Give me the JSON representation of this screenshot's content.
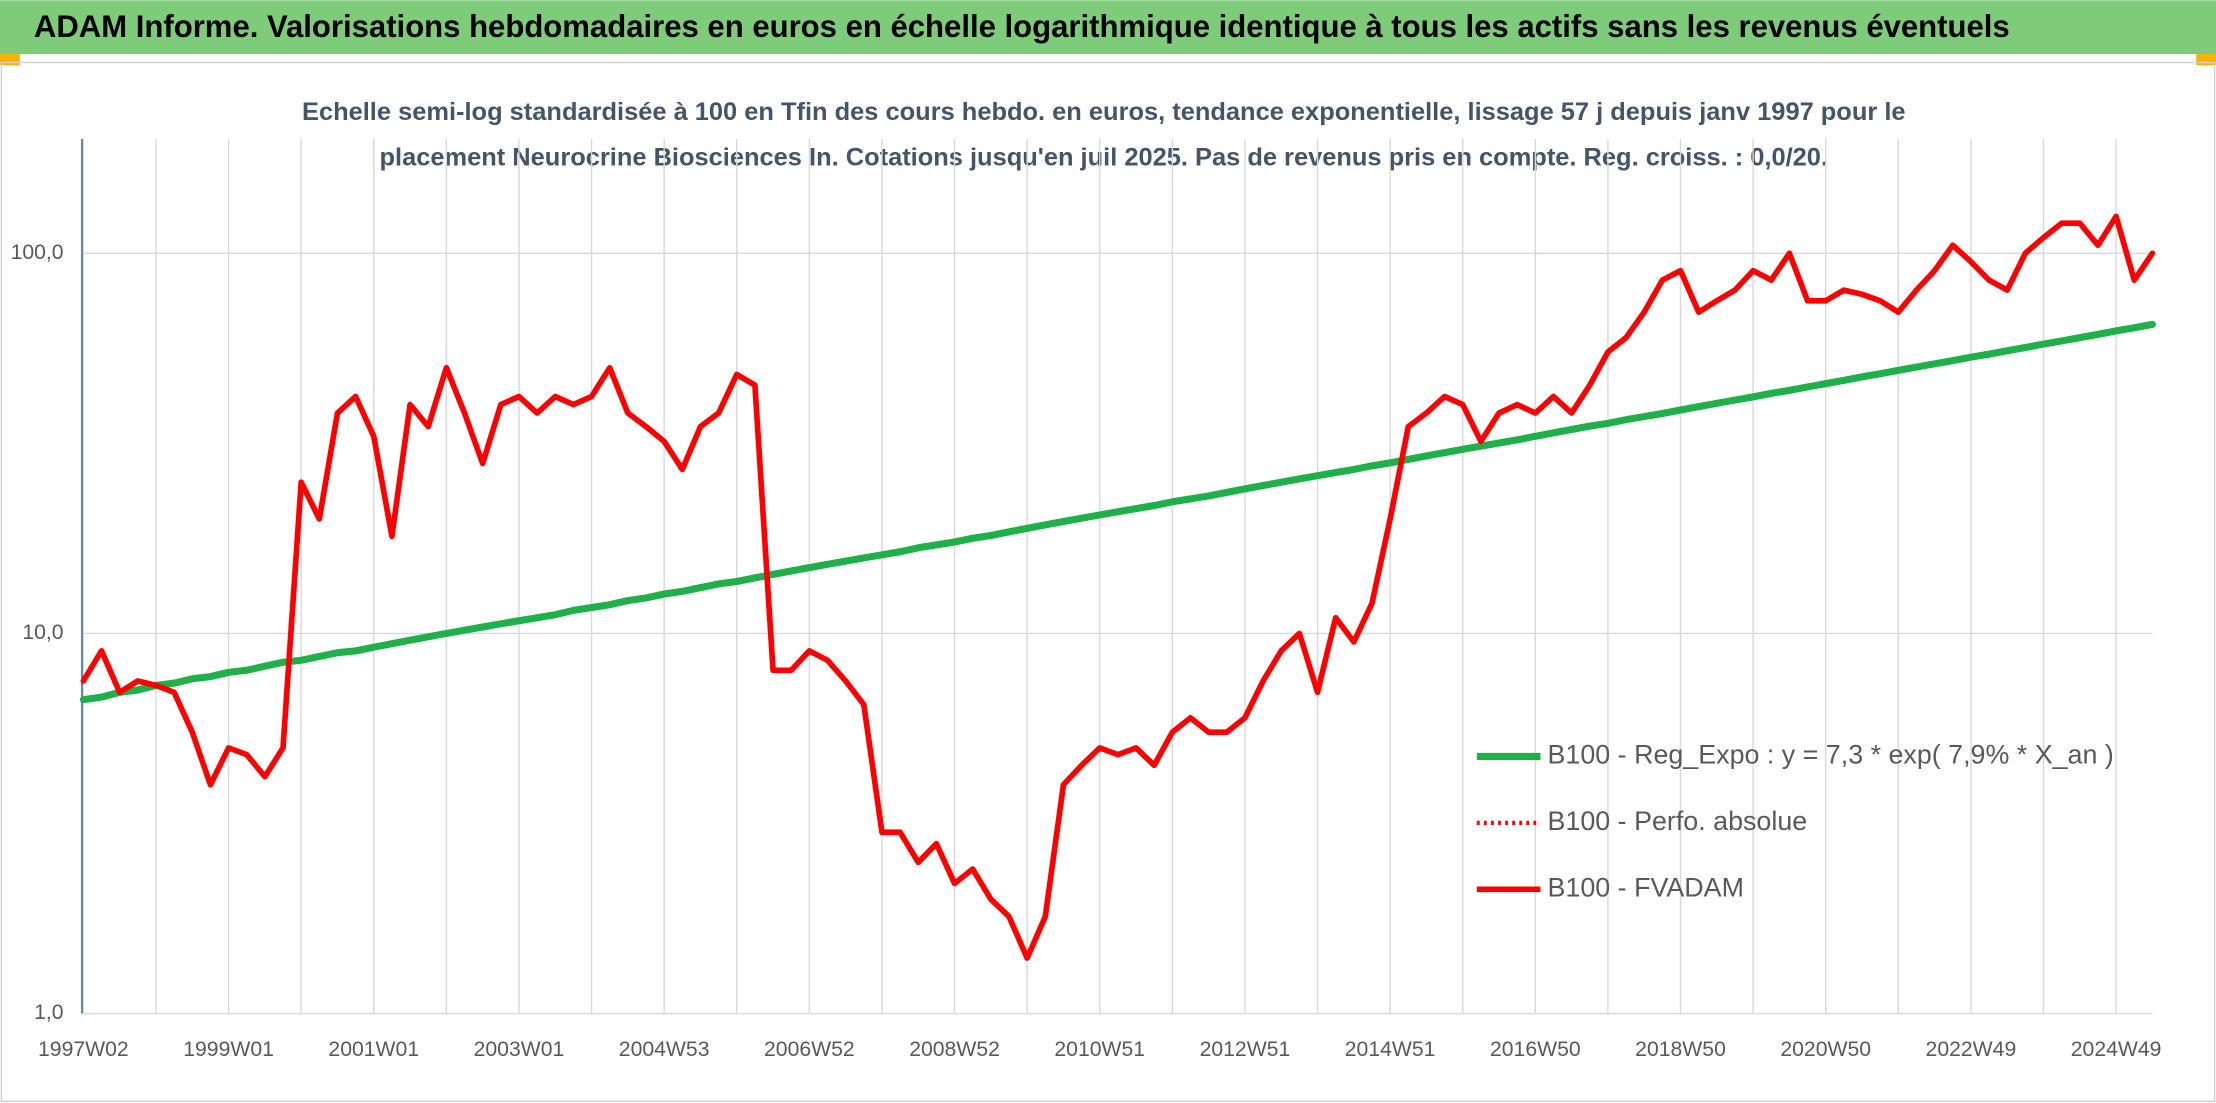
{
  "chart_data": {
    "type": "line",
    "title": "ADAM Informe. Valorisations hebdomadaires en euros en échelle logarithmique identique à tous les actifs sans les revenus éventuels",
    "subtitle": [
      "Echelle semi-log standardisée à 100 en Tfin des cours hebdo. en euros, tendance exponentielle, lissage 57 j depuis janv 1997 pour le",
      "placement Neurocrine Biosciences In. Cotations jusqu'en juil 2025. Pas de revenus pris en compte. Reg. croiss. : 0,0/20."
    ],
    "log_scale": true,
    "grid": true,
    "legend": "right",
    "ylim": [
      1,
      200
    ],
    "yticks": [
      {
        "value": 1,
        "label": "1,0"
      },
      {
        "value": 10,
        "label": "10,0"
      },
      {
        "value": 100,
        "label": "100,0"
      }
    ],
    "categories": [
      "1997W02",
      null,
      null,
      null,
      null,
      null,
      null,
      null,
      "1999W01",
      null,
      null,
      null,
      null,
      null,
      null,
      null,
      "2001W01",
      null,
      null,
      null,
      null,
      null,
      null,
      null,
      "2003W01",
      null,
      null,
      null,
      null,
      null,
      null,
      null,
      "2004W53",
      null,
      null,
      null,
      null,
      null,
      null,
      null,
      "2006W52",
      null,
      null,
      null,
      null,
      null,
      null,
      null,
      "2008W52",
      null,
      null,
      null,
      null,
      null,
      null,
      null,
      "2010W51",
      null,
      null,
      null,
      null,
      null,
      null,
      null,
      "2012W51",
      null,
      null,
      null,
      null,
      null,
      null,
      null,
      "2014W51",
      null,
      null,
      null,
      null,
      null,
      null,
      null,
      "2016W50",
      null,
      null,
      null,
      null,
      null,
      null,
      null,
      "2018W50",
      null,
      null,
      null,
      null,
      null,
      null,
      null,
      "2020W50",
      null,
      null,
      null,
      null,
      null,
      null,
      null,
      "2022W49",
      null,
      null,
      null,
      null,
      null,
      null,
      null,
      "2024W49",
      null,
      null
    ],
    "series": [
      {
        "name": "B100 - Reg_Expo : y = 7,3 * exp( 7,9% *  X_an )",
        "color": "#1fb04a",
        "width": 5,
        "dash": "solid",
        "values": [
          6.7,
          6.8,
          7.0,
          7.1,
          7.3,
          7.4,
          7.6,
          7.7,
          7.9,
          8.0,
          8.2,
          8.4,
          8.5,
          8.7,
          8.9,
          9.0,
          9.2,
          9.4,
          9.6,
          9.8,
          10.0,
          10.2,
          10.4,
          10.6,
          10.8,
          11.0,
          11.2,
          11.5,
          11.7,
          11.9,
          12.2,
          12.4,
          12.7,
          12.9,
          13.2,
          13.5,
          13.7,
          14.0,
          14.3,
          14.6,
          14.9,
          15.2,
          15.5,
          15.8,
          16.1,
          16.4,
          16.8,
          17.1,
          17.4,
          17.8,
          18.1,
          18.5,
          18.9,
          19.3,
          19.7,
          20.1,
          20.5,
          20.9,
          21.3,
          21.7,
          22.2,
          22.6,
          23.0,
          23.5,
          24.0,
          24.5,
          25.0,
          25.5,
          26.0,
          26.5,
          27.0,
          27.6,
          28.1,
          28.7,
          29.3,
          29.9,
          30.5,
          31.1,
          31.7,
          32.3,
          33.0,
          33.7,
          34.4,
          35.1,
          35.7,
          36.5,
          37.2,
          37.9,
          38.7,
          39.5,
          40.3,
          41.1,
          41.9,
          42.8,
          43.6,
          44.5,
          45.4,
          46.3,
          47.3,
          48.2,
          49.2,
          50.2,
          51.2,
          52.2,
          53.3,
          54.3,
          55.4,
          56.5,
          57.7,
          58.8,
          60.0,
          61.2,
          62.5,
          63.7,
          65.0
        ]
      },
      {
        "name": "B100 - Perfo. absolue",
        "color": "#ff0000",
        "width": 3,
        "dash": "dotted",
        "values": [
          7.5,
          9,
          7,
          7.5,
          7.3,
          7,
          5.5,
          4.0,
          5,
          4.8,
          4.2,
          5.0,
          25,
          20,
          38,
          42,
          33,
          18,
          40,
          35,
          50,
          38,
          28,
          40,
          42,
          38,
          42,
          40,
          42,
          50,
          38,
          35,
          32,
          27,
          35,
          38,
          48,
          45,
          8,
          8,
          9,
          8.5,
          7.5,
          6.5,
          3.0,
          3.0,
          2.5,
          2.8,
          2.2,
          2.4,
          2.0,
          1.8,
          1.4,
          1.8,
          4.0,
          4.5,
          5.0,
          4.8,
          5.0,
          4.5,
          5.5,
          6.0,
          5.5,
          5.5,
          6.0,
          7.5,
          9.0,
          10,
          7.0,
          11,
          9.5,
          12,
          20,
          35,
          38,
          42,
          40,
          32,
          38,
          40,
          38,
          42,
          38,
          45,
          55,
          60,
          70,
          85,
          90,
          70,
          75,
          80,
          90,
          85,
          100,
          75,
          75,
          80,
          78,
          75,
          70,
          80,
          90,
          105,
          95,
          85,
          80,
          100,
          110,
          120,
          120,
          105,
          125,
          85,
          100
        ]
      },
      {
        "name": "B100 - FVADAM",
        "color": "#ff0000",
        "width": 4,
        "dash": "solid",
        "values": [
          7.5,
          9,
          7,
          7.5,
          7.3,
          7,
          5.5,
          4.0,
          5,
          4.8,
          4.2,
          5.0,
          25,
          20,
          38,
          42,
          33,
          18,
          40,
          35,
          50,
          38,
          28,
          40,
          42,
          38,
          42,
          40,
          42,
          50,
          38,
          35,
          32,
          27,
          35,
          38,
          48,
          45,
          8,
          8,
          9,
          8.5,
          7.5,
          6.5,
          3.0,
          3.0,
          2.5,
          2.8,
          2.2,
          2.4,
          2.0,
          1.8,
          1.4,
          1.8,
          4.0,
          4.5,
          5.0,
          4.8,
          5.0,
          4.5,
          5.5,
          6.0,
          5.5,
          5.5,
          6.0,
          7.5,
          9.0,
          10,
          7.0,
          11,
          9.5,
          12,
          20,
          35,
          38,
          42,
          40,
          32,
          38,
          40,
          38,
          42,
          38,
          45,
          55,
          60,
          70,
          85,
          90,
          70,
          75,
          80,
          90,
          85,
          100,
          75,
          75,
          80,
          78,
          75,
          70,
          80,
          90,
          105,
          95,
          85,
          80,
          100,
          110,
          120,
          120,
          105,
          125,
          85,
          100
        ]
      }
    ]
  }
}
